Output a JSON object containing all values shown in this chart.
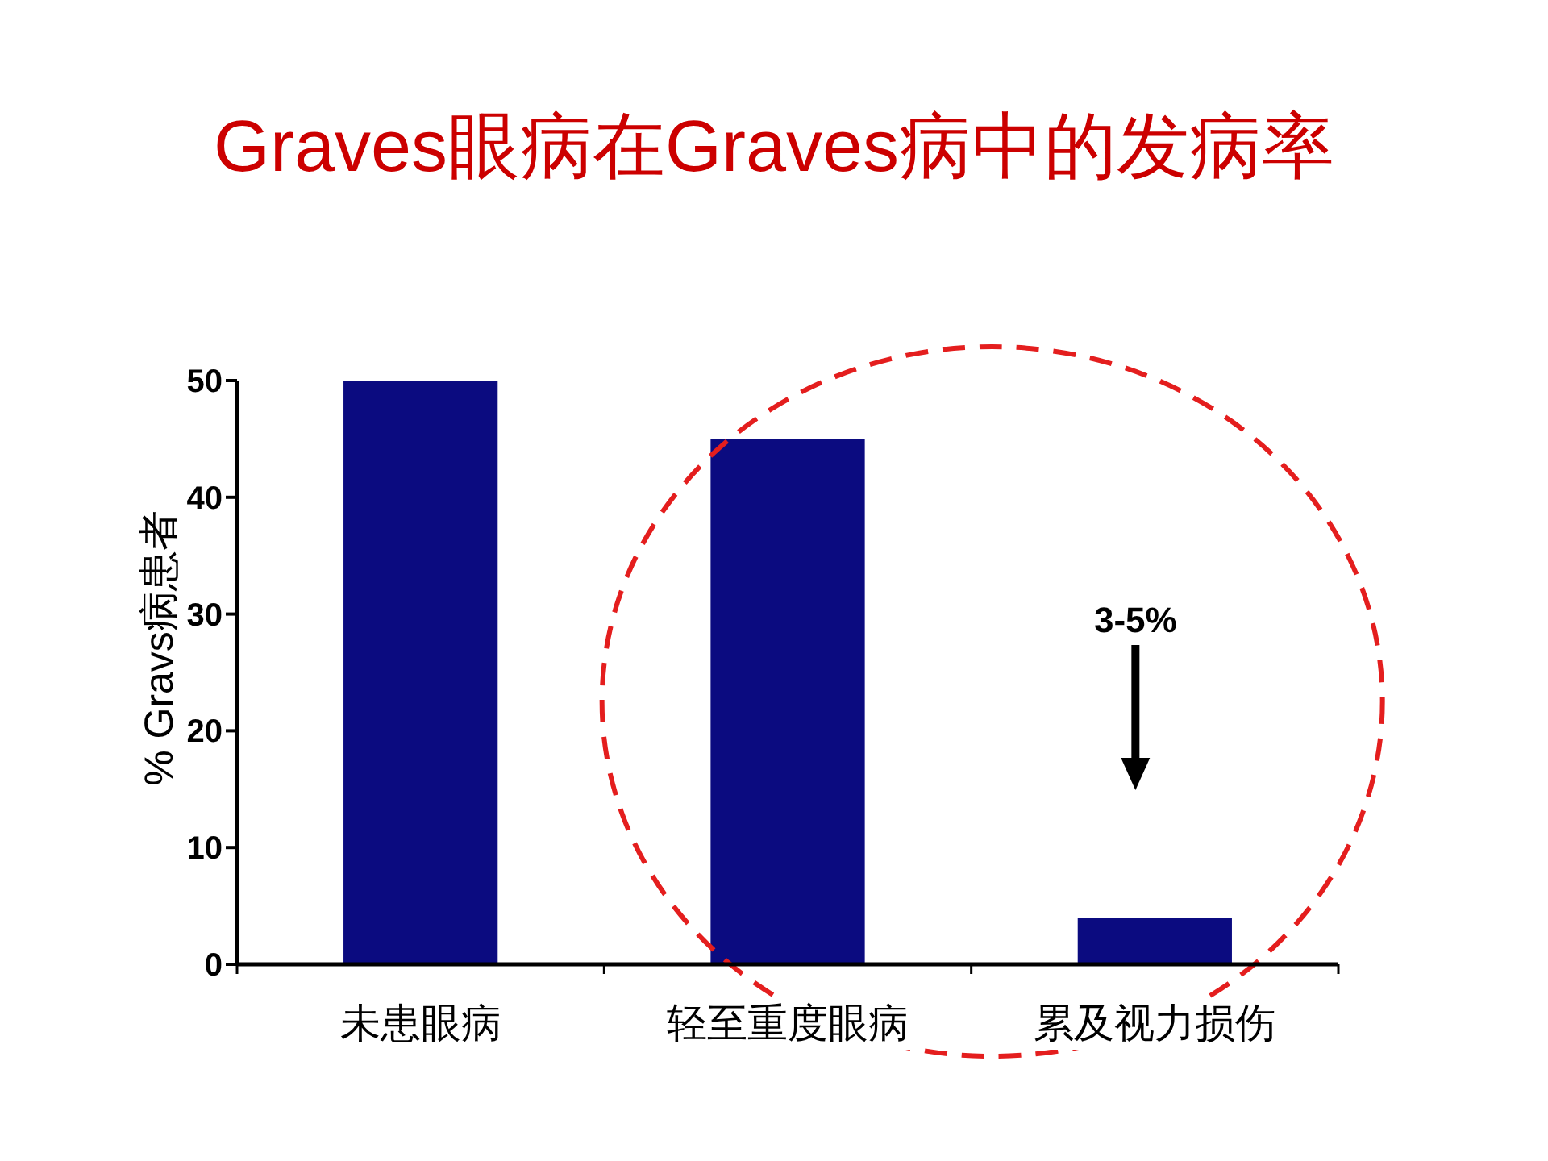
{
  "chart_data": {
    "type": "bar",
    "title": "Graves眼病在Graves病中的发病率",
    "ylabel": "% Gravs病患者",
    "categories": [
      "未患眼病",
      "轻至重度眼病",
      "累及视力损伤"
    ],
    "values": [
      50,
      45,
      4
    ],
    "color": "#0b0b80",
    "ylim": [
      0,
      50
    ],
    "yticks": [
      0,
      10,
      20,
      30,
      40,
      50
    ],
    "annotations": [
      "3-5%"
    ]
  }
}
